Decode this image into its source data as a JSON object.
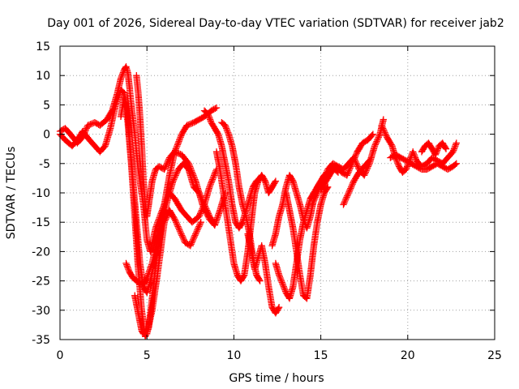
{
  "chart_data": {
    "type": "scatter",
    "title": "Day 001 of 2026, Sidereal Day-to-day VTEC variation (SDTVAR) for receiver jab2",
    "xlabel": "GPS time / hours",
    "ylabel": "SDTVAR / TECUs",
    "xlim": [
      0,
      25
    ],
    "ylim": [
      -35,
      15
    ],
    "xticks": [
      "0",
      "5",
      "10",
      "15",
      "20",
      "25"
    ],
    "yticks": [
      "15",
      "10",
      "5",
      "0",
      "-5",
      "-10",
      "-15",
      "-20",
      "-25",
      "-30",
      "-35"
    ],
    "xtick_values": [
      0,
      5,
      10,
      15,
      20,
      25
    ],
    "ytick_values": [
      15,
      10,
      5,
      0,
      -5,
      -10,
      -15,
      -20,
      -25,
      -30,
      -35
    ],
    "grid": true,
    "legend": "none",
    "marker": "+",
    "color": "#ff0000",
    "series": [
      {
        "x": [
          0.0,
          0.3,
          0.6,
          1.0,
          1.3,
          1.6,
          2.0,
          2.3,
          2.7,
          3.0,
          3.3,
          3.5,
          3.7,
          3.8,
          3.9,
          4.0,
          4.1,
          4.3,
          4.5,
          4.8,
          5.0,
          5.2,
          5.5,
          6.0,
          6.3,
          6.6,
          7.0,
          7.3,
          7.7,
          8.0,
          8.3,
          8.7,
          9.0
        ],
        "y": [
          0.5,
          1.0,
          0.0,
          -1.5,
          -0.5,
          1.5,
          2.0,
          1.5,
          2.5,
          4.0,
          7.0,
          9.5,
          11.0,
          11.5,
          10.5,
          8.0,
          5.0,
          0.0,
          -6.0,
          -12.0,
          -18.0,
          -20.0,
          -16.0,
          -12.0,
          -7.0,
          -3.0,
          0.0,
          1.5,
          2.0,
          2.5,
          3.0,
          4.0,
          4.5
        ]
      },
      {
        "x": [
          0.0,
          0.3,
          0.7,
          1.0,
          1.3,
          1.7,
          2.0,
          2.3,
          2.6,
          2.9,
          3.2,
          3.5,
          3.7,
          3.9,
          4.1,
          4.3,
          4.5,
          4.7,
          4.9,
          5.1,
          5.3,
          5.6,
          5.9,
          6.2,
          6.5,
          6.8,
          7.1,
          7.4,
          7.7,
          8.0,
          8.3,
          8.6,
          8.9
        ],
        "y": [
          0.0,
          -1.0,
          -2.0,
          -1.0,
          0.5,
          -1.0,
          -2.0,
          -3.0,
          -2.0,
          1.0,
          5.0,
          7.5,
          7.0,
          2.0,
          -5.0,
          -14.0,
          -23.0,
          -30.0,
          -34.5,
          -33.0,
          -28.0,
          -20.0,
          -15.0,
          -11.0,
          -8.0,
          -6.0,
          -5.0,
          -6.0,
          -9.0,
          -10.0,
          -12.0,
          -14.0,
          -15.5
        ]
      },
      {
        "x": [
          3.8,
          4.0,
          4.2,
          4.4,
          4.6,
          4.8,
          5.0,
          5.3,
          5.6,
          6.0,
          6.3,
          6.6,
          7.0,
          7.3,
          7.6,
          8.0,
          8.3,
          8.6,
          9.0
        ],
        "y": [
          -22.0,
          -23.5,
          -24.5,
          -25.0,
          -25.5,
          -25.5,
          -24.5,
          -22.0,
          -18.0,
          -12.0,
          -10.0,
          -11.0,
          -13.0,
          -14.0,
          -15.0,
          -14.0,
          -12.0,
          -9.0,
          -6.0
        ]
      },
      {
        "x": [
          4.3,
          4.4,
          4.5,
          4.6,
          4.7,
          4.8,
          5.0,
          5.3,
          5.6,
          6.0,
          6.3,
          6.6,
          6.9,
          7.2,
          7.5,
          7.8,
          8.1
        ],
        "y": [
          -27.5,
          -29.0,
          -30.5,
          -32.0,
          -33.5,
          -34.0,
          -34.0,
          -30.0,
          -24.0,
          -15.0,
          -13.0,
          -14.5,
          -16.5,
          -18.5,
          -19.0,
          -17.0,
          -15.0
        ]
      },
      {
        "x": [
          4.4,
          4.5,
          4.6,
          4.7,
          4.8,
          4.9,
          5.0,
          5.1,
          5.2,
          5.3,
          5.5,
          5.7,
          6.0,
          6.3,
          6.6,
          7.0,
          7.4,
          7.8,
          8.2,
          8.6,
          8.9,
          9.2,
          9.5
        ],
        "y": [
          10.0,
          7.0,
          3.0,
          -2.0,
          -8.0,
          -12.0,
          -14.0,
          -12.0,
          -10.0,
          -8.0,
          -6.0,
          -5.5,
          -6.0,
          -4.0,
          -3.0,
          -3.5,
          -5.0,
          -8.0,
          -12.0,
          -14.5,
          -15.5,
          -13.0,
          -10.0
        ]
      },
      {
        "x": [
          3.5,
          3.7,
          3.9,
          4.0,
          4.2,
          4.4,
          4.6,
          4.8,
          5.0,
          5.2,
          5.4
        ],
        "y": [
          3.0,
          6.5,
          4.0,
          -1.0,
          -8.0,
          -15.0,
          -22.0,
          -26.0,
          -27.0,
          -25.0,
          -22.0
        ]
      },
      {
        "x": [
          9.3,
          9.5,
          9.7,
          9.9,
          10.1,
          10.3,
          10.5,
          10.7,
          10.9,
          11.1,
          11.3,
          11.5
        ],
        "y": [
          2.0,
          1.5,
          0.0,
          -2.0,
          -5.0,
          -9.0,
          -12.0,
          -14.0,
          -17.0,
          -21.0,
          -24.0,
          -25.0
        ]
      },
      {
        "x": [
          9.0,
          9.2,
          9.4,
          9.6,
          9.8,
          10.0,
          10.2,
          10.4,
          10.6,
          10.8,
          11.0,
          11.2,
          11.4,
          11.6,
          11.8,
          12.0,
          12.2,
          12.4
        ],
        "y": [
          -3.0,
          -6.0,
          -10.0,
          -14.0,
          -18.0,
          -22.0,
          -24.0,
          -25.0,
          -24.0,
          -20.0,
          -15.0,
          -10.0,
          -8.0,
          -7.0,
          -8.0,
          -10.0,
          -9.0,
          -8.0
        ]
      },
      {
        "x": [
          8.3,
          8.5,
          8.7,
          8.9,
          9.1,
          9.3,
          9.5,
          9.7,
          9.9,
          10.1,
          10.3,
          10.5,
          10.7,
          10.9,
          11.1,
          11.3,
          11.5
        ],
        "y": [
          4.0,
          3.5,
          2.0,
          1.0,
          0.0,
          -2.0,
          -5.0,
          -8.0,
          -12.0,
          -15.0,
          -16.0,
          -15.0,
          -13.0,
          -11.0,
          -9.0,
          -8.0,
          -7.5
        ]
      },
      {
        "x": [
          10.8,
          11.0,
          11.2,
          11.4,
          11.6,
          11.8,
          12.0,
          12.2,
          12.4,
          12.6
        ],
        "y": [
          -17.0,
          -20.0,
          -23.0,
          -21.0,
          -19.0,
          -22.0,
          -26.0,
          -29.5,
          -30.5,
          -29.5
        ]
      },
      {
        "x": [
          12.2,
          12.4,
          12.6,
          12.8,
          13.0,
          13.2,
          13.4,
          13.6,
          13.8,
          14.0,
          14.2,
          14.4,
          14.6,
          14.8,
          15.0,
          15.2
        ],
        "y": [
          -19.0,
          -17.0,
          -14.0,
          -12.0,
          -9.0,
          -7.0,
          -8.0,
          -10.0,
          -12.0,
          -14.5,
          -16.0,
          -14.0,
          -11.0,
          -9.0,
          -8.0,
          -7.0
        ]
      },
      {
        "x": [
          12.4,
          12.6,
          12.8,
          13.0,
          13.2,
          13.4,
          13.6,
          13.8,
          14.0,
          14.2,
          14.4,
          14.6,
          14.8,
          15.0,
          15.2,
          15.4,
          15.6,
          15.8,
          16.0
        ],
        "y": [
          -22.0,
          -24.0,
          -25.5,
          -27.0,
          -28.0,
          -26.0,
          -22.0,
          -18.0,
          -15.0,
          -13.0,
          -11.0,
          -10.0,
          -9.0,
          -8.0,
          -7.0,
          -6.5,
          -6.0,
          -6.0,
          -6.5
        ]
      },
      {
        "x": [
          13.0,
          13.2,
          13.4,
          13.6,
          13.8,
          14.0,
          14.2,
          14.4,
          14.6,
          14.8,
          15.0,
          15.2,
          15.4
        ],
        "y": [
          -10.0,
          -13.0,
          -16.0,
          -20.0,
          -24.0,
          -27.5,
          -28.0,
          -24.0,
          -19.0,
          -15.0,
          -12.0,
          -10.0,
          -9.0
        ]
      },
      {
        "x": [
          14.5,
          14.8,
          15.1,
          15.4,
          15.7,
          16.0,
          16.3,
          16.6,
          16.9,
          17.2,
          17.5,
          17.8,
          18.1,
          18.4,
          18.6
        ],
        "y": [
          -12.0,
          -10.0,
          -8.0,
          -6.0,
          -5.0,
          -5.5,
          -6.0,
          -5.0,
          -4.0,
          -6.0,
          -7.0,
          -5.0,
          -2.0,
          0.0,
          2.5
        ]
      },
      {
        "x": [
          15.0,
          15.3,
          15.6,
          15.9,
          16.2,
          16.5,
          16.8,
          17.1,
          17.4,
          17.7,
          18.0
        ],
        "y": [
          -9.5,
          -8.0,
          -6.5,
          -5.5,
          -6.5,
          -7.0,
          -5.0,
          -3.0,
          -1.5,
          -1.0,
          0.0
        ]
      },
      {
        "x": [
          16.3,
          16.6,
          16.9,
          17.2,
          17.5,
          17.8
        ],
        "y": [
          -12.0,
          -10.0,
          -8.0,
          -6.5,
          -5.5,
          -4.5
        ]
      },
      {
        "x": [
          18.5,
          18.8,
          19.1,
          19.3,
          19.5,
          19.7,
          19.9,
          20.1,
          20.3,
          20.5,
          20.8,
          21.1,
          21.4,
          21.7,
          22.0,
          22.3,
          22.6,
          22.8
        ],
        "y": [
          1.5,
          -0.5,
          -2.0,
          -4.0,
          -5.5,
          -6.5,
          -6.0,
          -4.5,
          -3.0,
          -4.5,
          -5.5,
          -5.0,
          -4.0,
          -4.5,
          -5.0,
          -4.0,
          -3.0,
          -1.5
        ]
      },
      {
        "x": [
          19.0,
          19.3,
          19.6,
          19.9,
          20.2,
          20.5,
          20.8,
          21.1,
          21.4,
          21.7,
          22.0,
          22.3,
          22.6,
          22.8
        ],
        "y": [
          -4.0,
          -3.5,
          -4.0,
          -4.5,
          -5.0,
          -5.5,
          -6.0,
          -6.0,
          -5.5,
          -5.0,
          -5.5,
          -6.0,
          -5.5,
          -5.0
        ]
      },
      {
        "x": [
          20.8,
          21.0,
          21.2,
          21.4,
          21.6,
          21.8,
          22.0,
          22.2
        ],
        "y": [
          -3.0,
          -2.0,
          -1.5,
          -2.5,
          -3.5,
          -2.0,
          -1.5,
          -2.5
        ]
      }
    ]
  }
}
